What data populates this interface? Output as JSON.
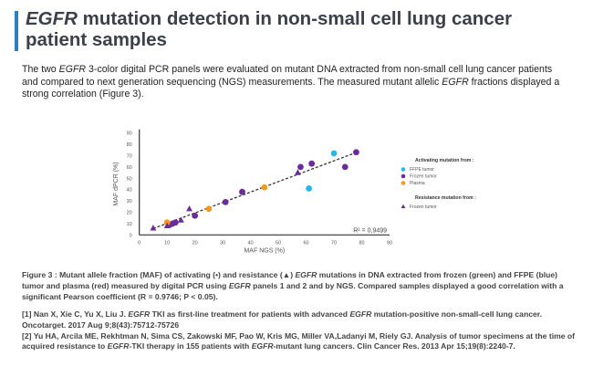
{
  "header": {
    "title": [
      {
        "t": "EGFR",
        "i": true
      },
      {
        "t": " mutation detection in non-small cell lung cancer patient samples",
        "i": false
      }
    ]
  },
  "intro": [
    {
      "t": "The two ",
      "i": false
    },
    {
      "t": "EGFR",
      "i": true
    },
    {
      "t": " 3-color digital PCR panels were evaluated on mutant DNA extracted from non-small cell lung cancer patients and compared to next generation sequencing (NGS) measurements. The measured mutant allelic ",
      "i": false
    },
    {
      "t": "EGFR",
      "i": true
    },
    {
      "t": " fractions displayed a strong correlation (Figure 3).",
      "i": false
    }
  ],
  "caption": [
    {
      "t": "Figure 3 : Mutant allele fraction (MAF) of activating (•) and resistance (▲) ",
      "i": false
    },
    {
      "t": "EGFR",
      "i": true
    },
    {
      "t": " mutations in DNA extracted from frozen (green) and FFPE (blue) tumor and plasma (red) measured by digital PCR using ",
      "i": false
    },
    {
      "t": "EGFR",
      "i": true
    },
    {
      "t": " panels 1 and 2 and by NGS. Compared samples displayed a good correlation with a  significant Pearson coefficient (R = 0.9746; P < 0.05).",
      "i": false
    }
  ],
  "references": [
    [
      {
        "t": "[1] Nan X, Xie C, Yu X, Liu J. ",
        "i": false
      },
      {
        "t": "EGFR",
        "i": true
      },
      {
        "t": " TKI as first-line treatment for patients with advanced ",
        "i": false
      },
      {
        "t": "EGFR",
        "i": true
      },
      {
        "t": " mutation-positive non-small-cell lung cancer. Oncotarget. 2017 Aug 9;8(43):75712-75726",
        "i": false
      }
    ],
    [
      {
        "t": "[2] Yu HA, Arcila ME, Rekhtman N, Sima CS, Zakowski MF, Pao W, Kris MG, Miller VA,Ladanyi M, Riely GJ. Analysis of tumor specimens at the time of acquired resistance to ",
        "i": false
      },
      {
        "t": "EGFR",
        "i": true
      },
      {
        "t": "-TKI therapy in 155 patients with ",
        "i": false
      },
      {
        "t": "EGFR",
        "i": true
      },
      {
        "t": "-mutant lung cancers. Clin Cancer Res. 2013 Apr 15;19(8):2240-7.",
        "i": false
      }
    ]
  ],
  "chart_data": {
    "type": "scatter",
    "xlabel": "MAF NGS (%)",
    "ylabel": "MAF dPCR (%)",
    "xlim": [
      0,
      90
    ],
    "ylim": [
      0,
      90
    ],
    "xticks": [
      "0",
      "10",
      "20",
      "30",
      "40",
      "50",
      "60",
      "70",
      "80",
      "90"
    ],
    "yticks": [
      "0",
      "10",
      "20",
      "30",
      "40",
      "50",
      "60",
      "70",
      "80",
      "90"
    ],
    "grid": false,
    "legend_position": "right",
    "legend_groups": [
      "Activating mutation from :",
      "Resistance mutation from :"
    ],
    "annotation": "R² = 0,9499",
    "trendline": {
      "style": "dashed",
      "color": "#333333",
      "x": [
        5,
        78
      ],
      "y": [
        5.6,
        72.8
      ]
    },
    "series": [
      {
        "name": "FFPE tumor",
        "group": 0,
        "marker": "circle",
        "color": "#29b6e8",
        "x": [
          61,
          70
        ],
        "y": [
          41,
          72
        ]
      },
      {
        "name": "Frozen tumor",
        "group": 0,
        "marker": "circle",
        "color": "#6a2c9a",
        "x": [
          11,
          12,
          13,
          20,
          31,
          37,
          58,
          62,
          74,
          78
        ],
        "y": [
          9,
          10,
          11,
          17,
          29,
          38,
          60,
          63,
          60,
          73
        ]
      },
      {
        "name": "Plasma",
        "group": 0,
        "marker": "circle",
        "color": "#f39a1e",
        "x": [
          10,
          25,
          45
        ],
        "y": [
          11,
          23,
          42
        ]
      },
      {
        "name": "Frozen tumor",
        "group": 1,
        "marker": "triangle",
        "color": "#6a2c9a",
        "x": [
          5,
          10,
          15,
          18,
          57
        ],
        "y": [
          6,
          8,
          13,
          23,
          55
        ]
      }
    ]
  }
}
